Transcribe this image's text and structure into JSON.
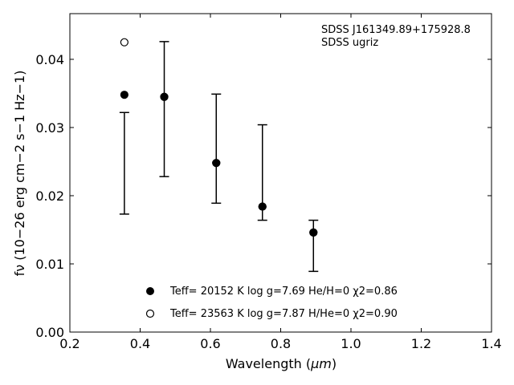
{
  "chart_data": {
    "type": "scatter",
    "xlabel_prefix": "Wavelength (",
    "xlabel_unit": "μm",
    "xlabel_suffix": ")",
    "ylabel": "fν (10−26 erg cm−2 s−1 Hz−1)",
    "xlim": [
      0.2,
      1.4
    ],
    "ylim": [
      0.0,
      0.0467
    ],
    "xticks": [
      0.2,
      0.4,
      0.6,
      0.8,
      1.0,
      1.2,
      1.4
    ],
    "xtick_labels": [
      "0.2",
      "0.4",
      "0.6",
      "0.8",
      "1.0",
      "1.2",
      "1.4"
    ],
    "yticks": [
      0.0,
      0.01,
      0.02,
      0.03,
      0.04
    ],
    "ytick_labels": [
      "0.00",
      "0.01",
      "0.02",
      "0.03",
      "0.04"
    ],
    "annotation": [
      "SDSS J161349.89+175928.8",
      "SDSS ugriz"
    ],
    "errorbars": [
      {
        "x": 0.3551,
        "low": 0.0173,
        "high": 0.0322
      },
      {
        "x": 0.4686,
        "low": 0.0228,
        "high": 0.0426
      },
      {
        "x": 0.6166,
        "low": 0.0189,
        "high": 0.0349
      },
      {
        "x": 0.748,
        "low": 0.0164,
        "high": 0.0304
      },
      {
        "x": 0.8932,
        "low": 0.0089,
        "high": 0.0164
      }
    ],
    "series": [
      {
        "marker": "filled",
        "legend": "Teff= 20152 K  log g=7.69  He/H=0  χ2=0.86",
        "x": [
          0.3551,
          0.4686,
          0.6166,
          0.748,
          0.8932
        ],
        "y": [
          0.0348,
          0.0345,
          0.0248,
          0.0184,
          0.0146
        ]
      },
      {
        "marker": "open",
        "legend": "Teff= 23563 K  log g=7.87  H/He=0  χ2=0.90",
        "x": [
          0.3551,
          0.4686,
          0.6166,
          0.748,
          0.8932
        ],
        "y": [
          0.0425,
          0.0345,
          0.0248,
          0.0184,
          0.0146
        ]
      }
    ],
    "legend_position": "lower-center",
    "grid": false
  }
}
